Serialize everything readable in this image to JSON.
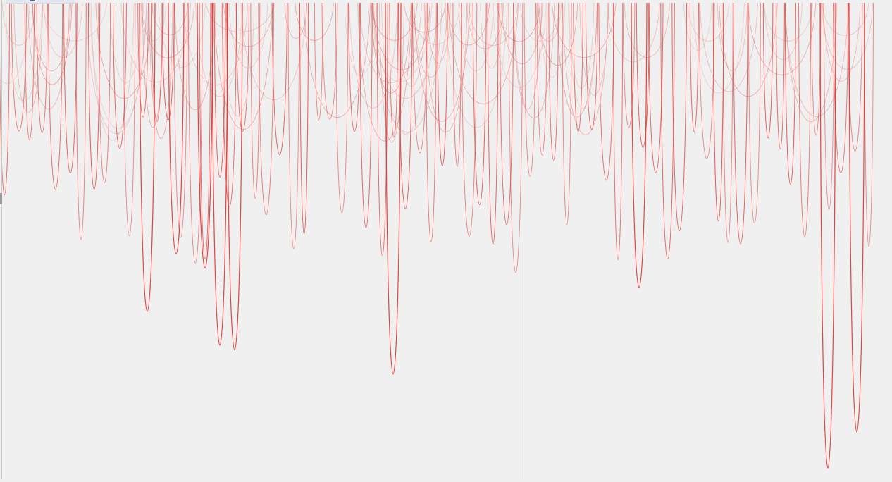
{
  "canvas": {
    "background": "#f0f0f0",
    "stroke_color": "#e53935"
  },
  "panes": {
    "count": 2
  },
  "curves": {
    "strong_minima_depth": [
      0.98,
      0.89,
      0.77,
      0.72,
      0.71,
      0.64,
      0.59,
      0.55,
      0.52
    ],
    "light_curve_opacity_range": [
      0.18,
      0.45
    ],
    "dark_curve_opacity_range": [
      0.6,
      0.95
    ]
  }
}
